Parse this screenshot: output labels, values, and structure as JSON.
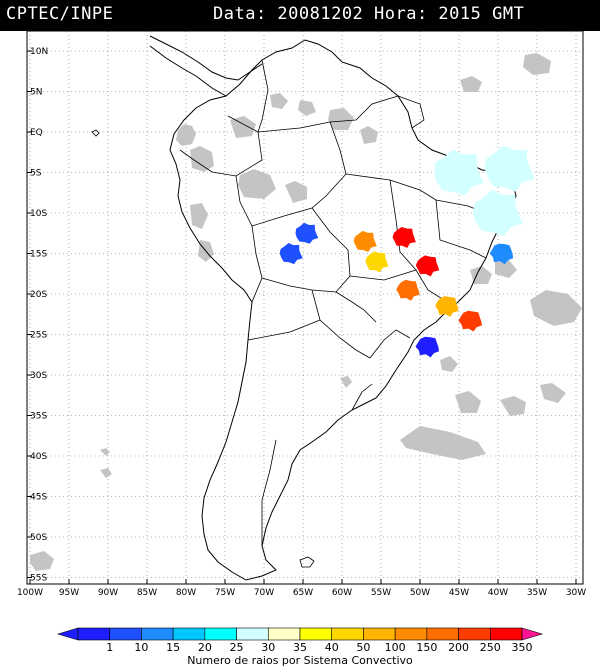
{
  "header": {
    "org": "CPTEC/INPE",
    "datetime": "Data: 20081202 Hora: 2015 GMT"
  },
  "axes": {
    "lat_ticks": [
      {
        "lat": 10,
        "label": "10N"
      },
      {
        "lat": 5,
        "label": "5N"
      },
      {
        "lat": 0,
        "label": "EQ"
      },
      {
        "lat": -5,
        "label": "5S"
      },
      {
        "lat": -10,
        "label": "10S"
      },
      {
        "lat": -15,
        "label": "15S"
      },
      {
        "lat": -20,
        "label": "20S"
      },
      {
        "lat": -25,
        "label": "25S"
      },
      {
        "lat": -30,
        "label": "30S"
      },
      {
        "lat": -35,
        "label": "35S"
      },
      {
        "lat": -40,
        "label": "40S"
      },
      {
        "lat": -45,
        "label": "45S"
      },
      {
        "lat": -50,
        "label": "50S"
      },
      {
        "lat": -55,
        "label": "55S"
      }
    ],
    "lon_ticks": [
      {
        "lon": -100,
        "label": "100W"
      },
      {
        "lon": -95,
        "label": "95W"
      },
      {
        "lon": -90,
        "label": "90W"
      },
      {
        "lon": -85,
        "label": "85W"
      },
      {
        "lon": -80,
        "label": "80W"
      },
      {
        "lon": -75,
        "label": "75W"
      },
      {
        "lon": -70,
        "label": "70W"
      },
      {
        "lon": -65,
        "label": "65W"
      },
      {
        "lon": -60,
        "label": "60W"
      },
      {
        "lon": -55,
        "label": "55W"
      },
      {
        "lon": -50,
        "label": "50W"
      },
      {
        "lon": -45,
        "label": "45W"
      },
      {
        "lon": -40,
        "label": "40W"
      },
      {
        "lon": -35,
        "label": "35W"
      },
      {
        "lon": -30,
        "label": "30W"
      }
    ]
  },
  "legend": {
    "caption": "Numero de raios por Sistema Convectivo",
    "bins": [
      {
        "label": "1",
        "color": "#1e1eff"
      },
      {
        "label": "10",
        "color": "#1e50ff"
      },
      {
        "label": "15",
        "color": "#1e8cff"
      },
      {
        "label": "20",
        "color": "#00c8ff"
      },
      {
        "label": "25",
        "color": "#00ffff"
      },
      {
        "label": "30",
        "color": "#d2ffff"
      },
      {
        "label": "35",
        "color": "#ffffc8"
      },
      {
        "label": "40",
        "color": "#ffff00"
      },
      {
        "label": "50",
        "color": "#ffd700"
      },
      {
        "label": "100",
        "color": "#ffb400"
      },
      {
        "label": "150",
        "color": "#ff8c00"
      },
      {
        "label": "200",
        "color": "#ff6e00"
      },
      {
        "label": "250",
        "color": "#ff3c00"
      },
      {
        "label": "350",
        "color": "#ff0000"
      }
    ],
    "low_end_color": "#1e1eff",
    "high_end_color": "#ff1493"
  },
  "colors": {
    "cloud": "#bebebe",
    "coast": "#000000"
  },
  "storms": [
    {
      "lon": -64.5,
      "lat": -12.5,
      "color": "#1e50ff"
    },
    {
      "lon": -66.5,
      "lat": -15.0,
      "color": "#1e50ff"
    },
    {
      "lon": -57.0,
      "lat": -13.5,
      "color": "#ff8c00"
    },
    {
      "lon": -55.5,
      "lat": -16.0,
      "color": "#ffd700"
    },
    {
      "lon": -52.0,
      "lat": -13.0,
      "color": "#ff0000"
    },
    {
      "lon": -49.0,
      "lat": -16.5,
      "color": "#ff0000"
    },
    {
      "lon": -51.5,
      "lat": -19.5,
      "color": "#ff6e00"
    },
    {
      "lon": -46.5,
      "lat": -21.5,
      "color": "#ffb400"
    },
    {
      "lon": -43.5,
      "lat": -23.3,
      "color": "#ff3c00"
    },
    {
      "lon": -49.0,
      "lat": -26.5,
      "color": "#1e1eff"
    },
    {
      "lon": -39.5,
      "lat": -15.0,
      "color": "#1e8cff"
    }
  ],
  "cold_clouds": [
    {
      "lon": -45.0,
      "lat": -5.0,
      "color": "#d2ffff"
    },
    {
      "lon": -40.0,
      "lat": -10.0,
      "color": "#d2ffff"
    },
    {
      "lon": -38.5,
      "lat": -4.5,
      "color": "#d2ffff"
    }
  ]
}
